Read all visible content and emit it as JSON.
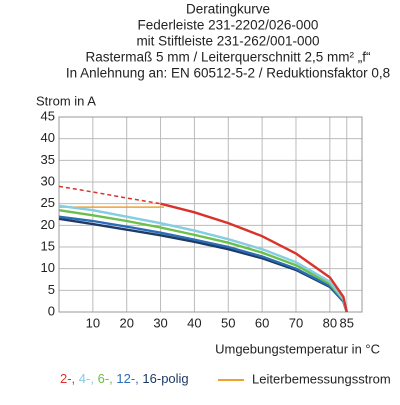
{
  "chart_data": {
    "type": "line",
    "title": [
      "Deratingkurve",
      "Federleiste 231-2202/026-000",
      "mit Stiftleiste 231-262/001-000",
      "Rastermaß 5 mm / Leiterquerschnitt 2,5 mm² „f“",
      "In Anlehnung an: EN 60512-5-2 / Reduktionsfaktor 0,8"
    ],
    "y_label": "Strom in A",
    "x_label": "Umgebungstemperatur in °C",
    "xlim": [
      0,
      89.5
    ],
    "ylim": [
      0,
      45
    ],
    "xticks": [
      10,
      20,
      30,
      40,
      50,
      60,
      70,
      80,
      85
    ],
    "yticks": [
      0,
      5,
      10,
      15,
      20,
      25,
      30,
      35,
      40,
      45
    ],
    "grid": true,
    "series": [
      {
        "name": "2-,",
        "color": "#d9322b",
        "x": [
          30,
          40,
          50,
          60,
          70,
          80,
          84,
          85
        ],
        "values": [
          25,
          23,
          20.5,
          17.5,
          13.5,
          8,
          3.5,
          0
        ]
      },
      {
        "name": "4-,",
        "color": "#84cde2",
        "x": [
          0,
          10,
          20,
          30,
          40,
          50,
          60,
          70,
          80,
          84,
          85
        ],
        "values": [
          24.5,
          23.5,
          22,
          20.5,
          18.8,
          16.8,
          14.5,
          11.5,
          7,
          3,
          0
        ]
      },
      {
        "name": "6-,",
        "color": "#6cbf4b",
        "x": [
          0,
          10,
          20,
          30,
          40,
          50,
          60,
          70,
          80,
          84,
          85
        ],
        "values": [
          23.5,
          22.3,
          21,
          19.5,
          17.8,
          16,
          13.7,
          10.8,
          6.5,
          2.8,
          0
        ]
      },
      {
        "name": "12-,",
        "color": "#2a6db5",
        "x": [
          0,
          10,
          20,
          30,
          40,
          50,
          60,
          70,
          80,
          84,
          85
        ],
        "values": [
          22,
          21,
          19.7,
          18.3,
          16.7,
          15,
          12.8,
          10,
          6,
          2.5,
          0
        ]
      },
      {
        "name": "16-polig",
        "color": "#1e3a66",
        "x": [
          0,
          10,
          20,
          30,
          40,
          50,
          60,
          70,
          80,
          84,
          85
        ],
        "values": [
          21.5,
          20.3,
          19,
          17.7,
          16.2,
          14.5,
          12.4,
          9.7,
          5.8,
          2.4,
          0
        ]
      }
    ],
    "extrapolation": {
      "color": "#d9322b",
      "dashed": true,
      "x": [
        0,
        10,
        20,
        30
      ],
      "values": [
        29,
        27.7,
        26.3,
        25
      ]
    },
    "rated_current": {
      "name": "Leiterbemessungsstrom",
      "color": "#f0a030",
      "x": [
        0,
        31
      ],
      "values": [
        24.2,
        24.2
      ]
    }
  }
}
